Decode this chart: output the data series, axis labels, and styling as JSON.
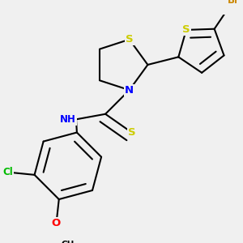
{
  "background_color": "#f0f0f0",
  "bond_color": "#000000",
  "bond_width": 1.5,
  "atom_colors": {
    "S": "#cccc00",
    "N": "#0000ff",
    "Br": "#cc8800",
    "Cl": "#00bb00",
    "O": "#ff0000",
    "C": "#000000",
    "H": "#555555"
  },
  "font_size": 8.5,
  "fig_size": [
    3.0,
    3.0
  ],
  "dpi": 100
}
